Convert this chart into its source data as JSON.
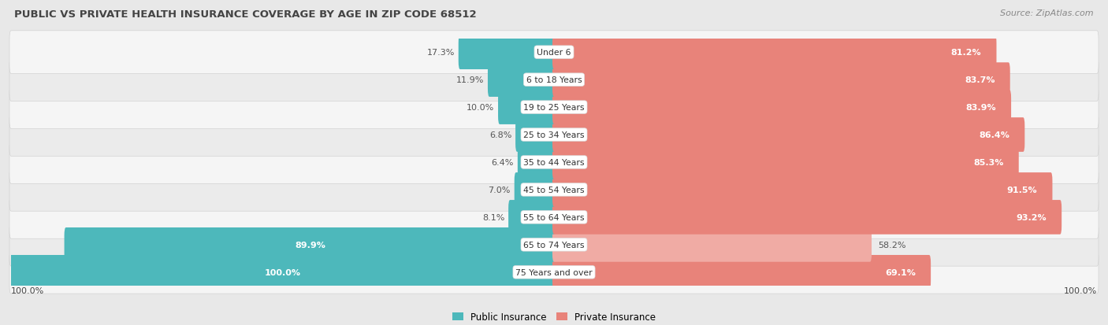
{
  "title": "PUBLIC VS PRIVATE HEALTH INSURANCE COVERAGE BY AGE IN ZIP CODE 68512",
  "source": "Source: ZipAtlas.com",
  "categories": [
    "Under 6",
    "6 to 18 Years",
    "19 to 25 Years",
    "25 to 34 Years",
    "35 to 44 Years",
    "45 to 54 Years",
    "55 to 64 Years",
    "65 to 74 Years",
    "75 Years and over"
  ],
  "public_values": [
    17.3,
    11.9,
    10.0,
    6.8,
    6.4,
    7.0,
    8.1,
    89.9,
    100.0
  ],
  "private_values": [
    81.2,
    83.7,
    83.9,
    86.4,
    85.3,
    91.5,
    93.2,
    58.2,
    69.1
  ],
  "public_color": "#4db8bb",
  "private_color": "#e8837a",
  "private_color_light": "#f0aba4",
  "bg_color": "#e8e8e8",
  "bar_bg_color": "#f5f5f5",
  "bar_bg_color2": "#ebebeb",
  "title_color": "#444444",
  "source_color": "#888888",
  "label_inside_color": "#ffffff",
  "label_outside_color": "#555555",
  "bar_height": 0.65,
  "figsize": [
    14.06,
    4.14
  ],
  "dpi": 100
}
